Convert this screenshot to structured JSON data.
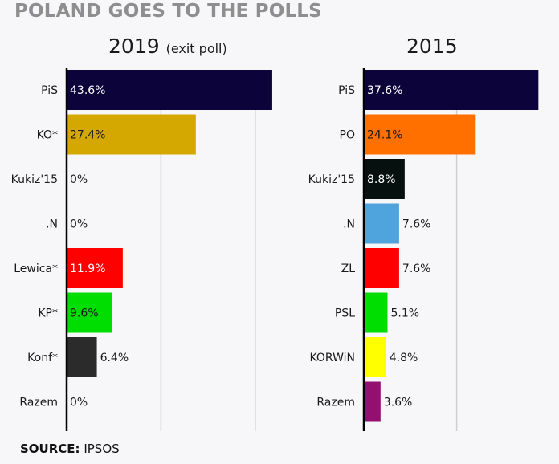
{
  "title": "POLAND GOES TO THE POLLS",
  "source": {
    "label": "SOURCE:",
    "value": "IPSOS"
  },
  "chart_data": [
    {
      "type": "bar",
      "orientation": "horizontal",
      "title": "2019",
      "subtitle": "(exit poll)",
      "xlim": [
        0,
        45
      ],
      "gridlines": [
        20,
        40
      ],
      "categories": [
        "PiS",
        "KO*",
        "Kukiz'15",
        ".N",
        "Lewica*",
        "KP*",
        "Konf*",
        "Razem"
      ],
      "values": [
        43.6,
        27.4,
        0,
        0,
        11.9,
        9.6,
        6.4,
        0
      ],
      "labels": [
        "43.6%",
        "27.4%",
        "0%",
        "0%",
        "11.9%",
        "9.6%",
        "6.4%",
        "0%"
      ],
      "colors": [
        "#0b0339",
        "#d4a800",
        "#f7f7f9",
        "#f7f7f9",
        "#ff0000",
        "#00dd00",
        "#2b2b2b",
        "#f7f7f9"
      ],
      "label_colors": [
        "#ffffff",
        "#1a1a1a",
        "#1a1a1a",
        "#1a1a1a",
        "#ffffff",
        "#1a1a1a",
        "#ffffff",
        "#1a1a1a"
      ]
    },
    {
      "type": "bar",
      "orientation": "horizontal",
      "title": "2015",
      "subtitle": "",
      "xlim": [
        0,
        40
      ],
      "gridlines": [
        20
      ],
      "categories": [
        "PiS",
        "PO",
        "Kukiz'15",
        ".N",
        "ZL",
        "PSL",
        "KORWiN",
        "Razem"
      ],
      "values": [
        37.6,
        24.1,
        8.8,
        7.6,
        7.6,
        5.1,
        4.8,
        3.6
      ],
      "labels": [
        "37.6%",
        "24.1%",
        "8.8%",
        "7.6%",
        "7.6%",
        "5.1%",
        "4.8%",
        "3.6%"
      ],
      "colors": [
        "#0b0339",
        "#ff7000",
        "#06100e",
        "#4fa4dd",
        "#ff0000",
        "#00dd00",
        "#ffff00",
        "#941070"
      ],
      "label_colors": [
        "#ffffff",
        "#1a1a1a",
        "#ffffff",
        "#1a1a1a",
        "#ffffff",
        "#1a1a1a",
        "#1a1a1a",
        "#1a1a1a"
      ]
    }
  ]
}
